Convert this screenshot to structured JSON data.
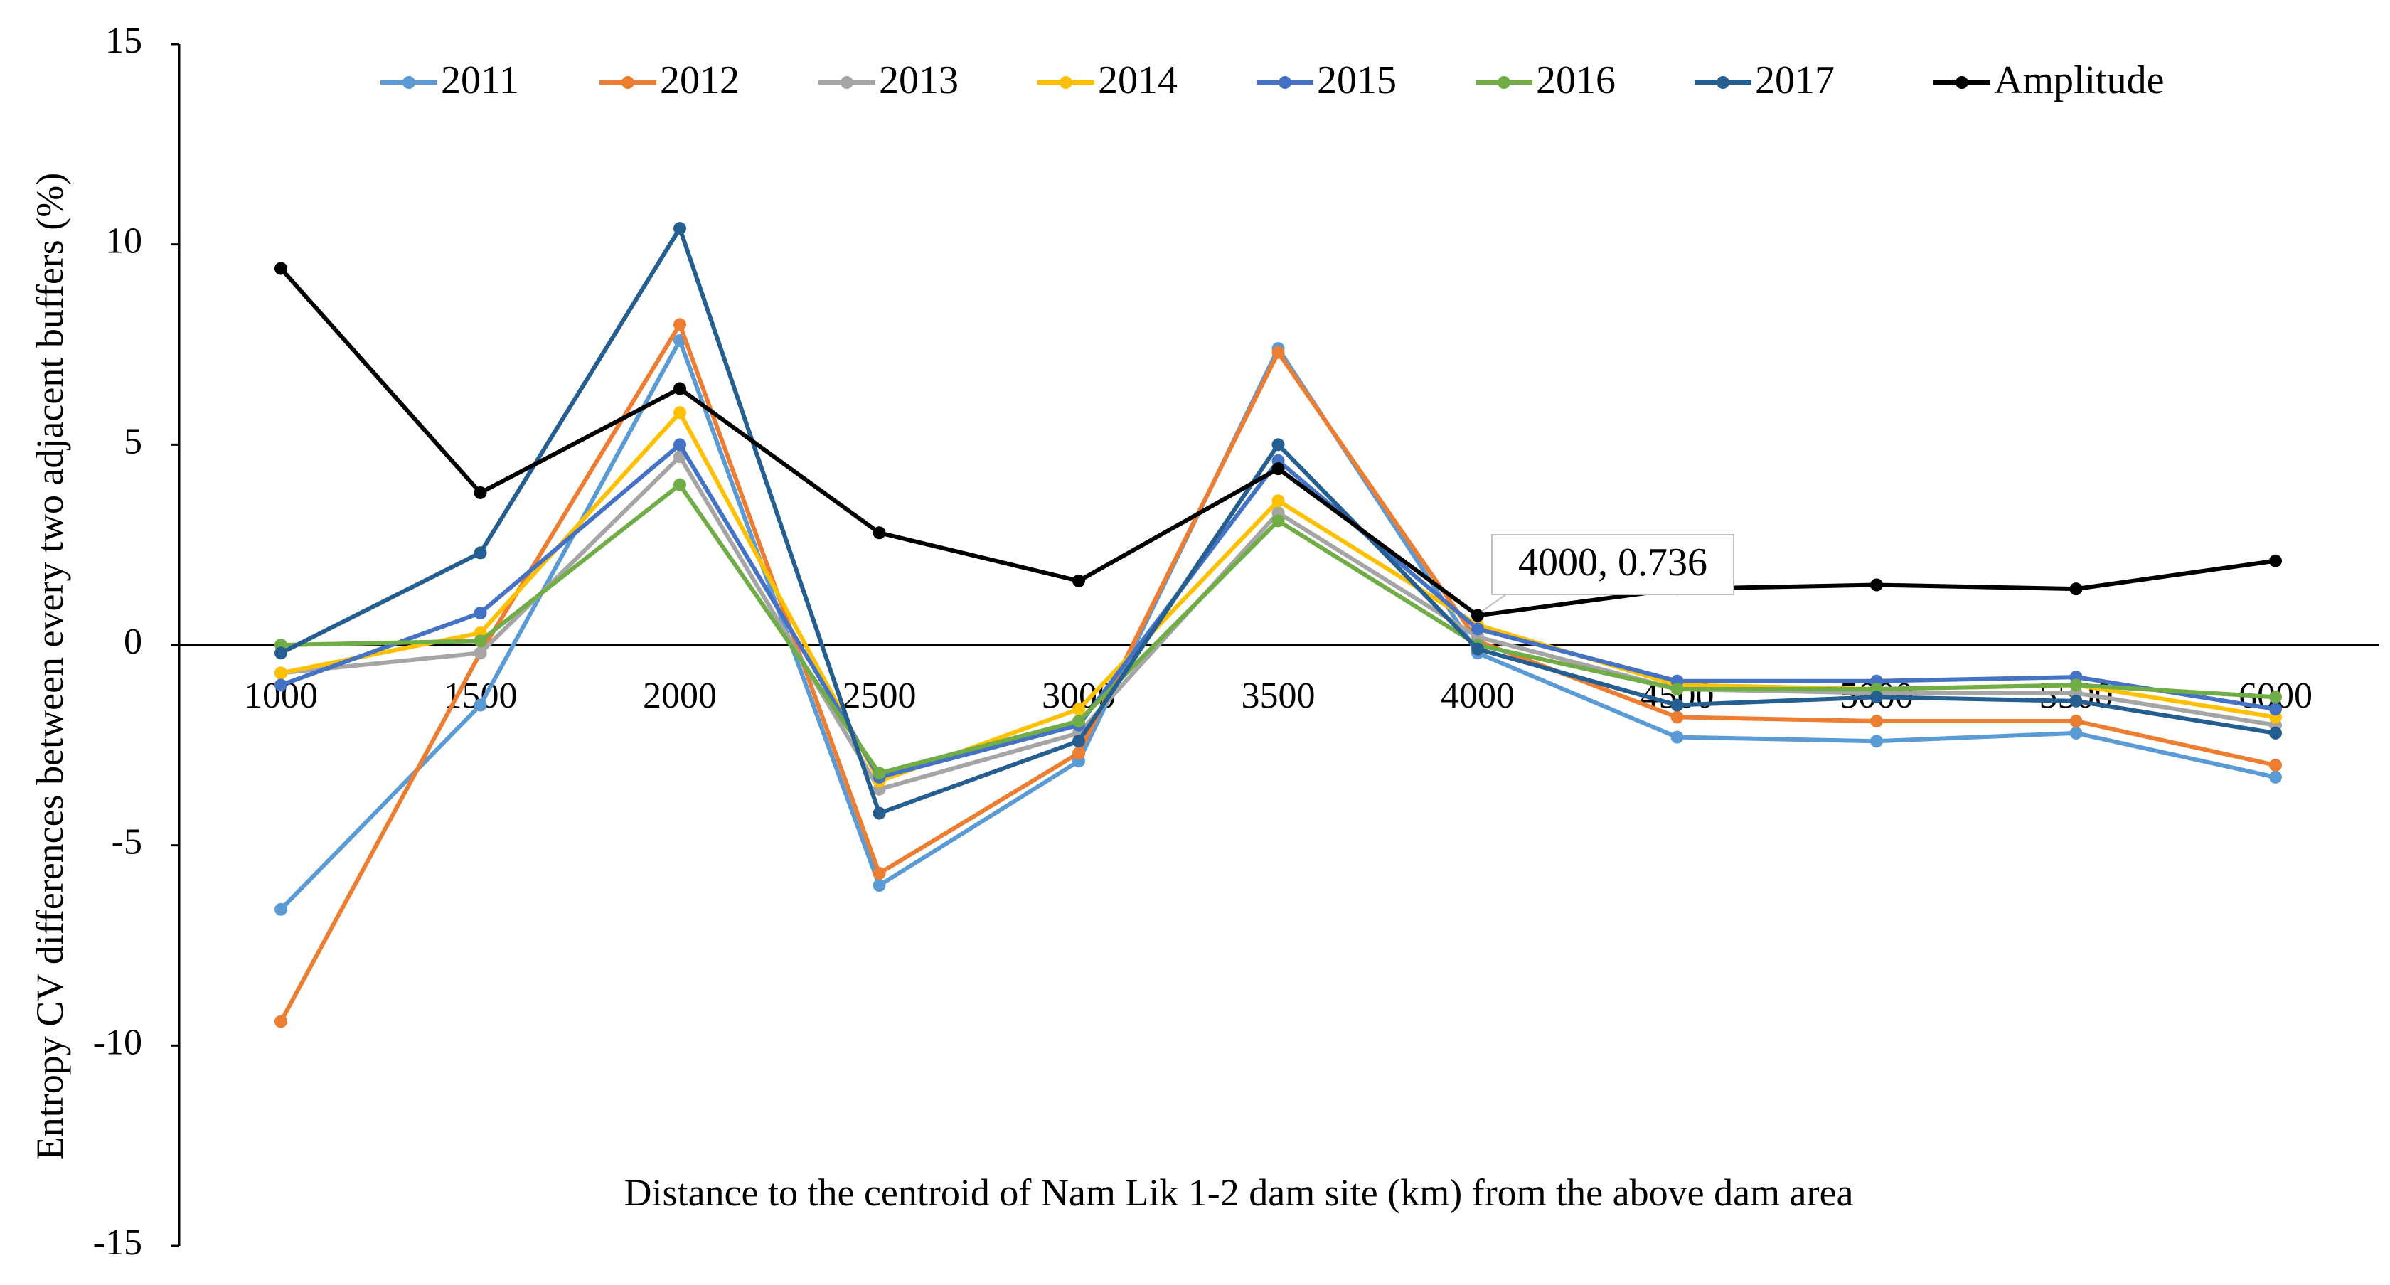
{
  "chart_data": {
    "type": "line",
    "title": "",
    "xlabel": "Distance to the centroid of Nam Lik 1-2 dam site (km) from the above dam area",
    "ylabel": "Entropy CV differences between every two adjacent buffers (%)",
    "x": [
      1000,
      1500,
      2000,
      2500,
      3000,
      3500,
      4000,
      4500,
      5000,
      5500,
      6000
    ],
    "x_tick_labels": [
      "1000",
      "1500",
      "2000",
      "2500",
      "3000",
      "3500",
      "4000",
      "4500",
      "5000",
      "5500",
      "6000"
    ],
    "ylim": [
      -15,
      15
    ],
    "y_ticks": [
      15,
      10,
      5,
      0,
      -5,
      -10,
      -15
    ],
    "y_tick_labels": [
      "15",
      "10",
      "5",
      "0",
      "-5",
      "-10",
      "-15"
    ],
    "grid": false,
    "legend_position": "top",
    "series": [
      {
        "name": "2011",
        "color": "#5B9BD5",
        "values": [
          -6.6,
          -1.5,
          7.6,
          -6.0,
          -2.9,
          7.4,
          -0.2,
          -2.3,
          -2.4,
          -2.2,
          -3.3
        ]
      },
      {
        "name": "2012",
        "color": "#ED7D31",
        "values": [
          -9.4,
          -0.2,
          8.0,
          -5.7,
          -2.7,
          7.3,
          0.1,
          -1.8,
          -1.9,
          -1.9,
          -3.0
        ]
      },
      {
        "name": "2013",
        "color": "#A5A5A5",
        "values": [
          -0.7,
          -0.2,
          4.7,
          -3.6,
          -2.2,
          3.3,
          0.2,
          -1.1,
          -1.2,
          -1.2,
          -2.0
        ]
      },
      {
        "name": "2014",
        "color": "#FFC000",
        "values": [
          -0.7,
          0.3,
          5.8,
          -3.4,
          -1.6,
          3.6,
          0.5,
          -1.0,
          -1.1,
          -1.0,
          -1.8
        ]
      },
      {
        "name": "2015",
        "color": "#4472C4",
        "values": [
          -1.0,
          0.8,
          5.0,
          -3.3,
          -2.0,
          4.6,
          0.4,
          -0.9,
          -0.9,
          -0.8,
          -1.6
        ]
      },
      {
        "name": "2016",
        "color": "#70AD47",
        "values": [
          0.0,
          0.1,
          4.0,
          -3.2,
          -1.9,
          3.1,
          0.0,
          -1.1,
          -1.1,
          -1.0,
          -1.3
        ]
      },
      {
        "name": "2017",
        "color": "#255E91",
        "values": [
          -0.2,
          2.3,
          10.4,
          -4.2,
          -2.4,
          5.0,
          -0.1,
          -1.5,
          -1.3,
          -1.4,
          -2.2
        ]
      },
      {
        "name": "Amplitude",
        "color": "#000000",
        "values": [
          9.4,
          3.8,
          6.4,
          2.8,
          1.6,
          4.4,
          0.736,
          1.4,
          1.5,
          1.4,
          2.1
        ]
      }
    ],
    "annotations": [
      {
        "series": "Amplitude",
        "x": 4000,
        "y": 0.736,
        "text": "4000, 0.736"
      }
    ]
  }
}
